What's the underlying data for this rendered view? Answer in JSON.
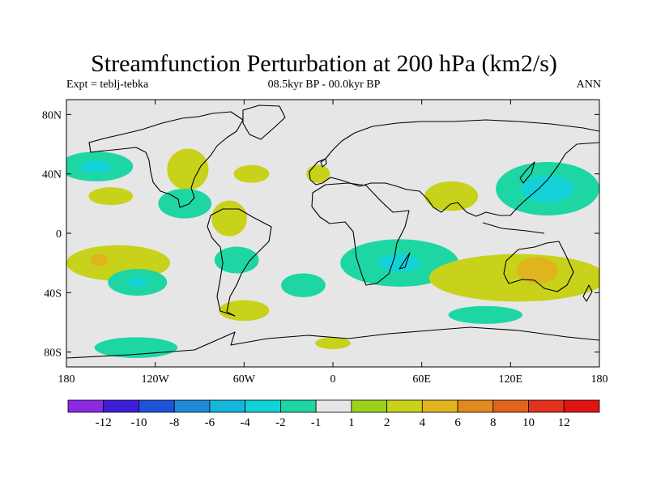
{
  "header": {
    "title": "Streamfunction Perturbation at 200 hPa (km2/s)",
    "left_label": "Expt = teblj-tebka",
    "center_label": "08.5kyr BP - 00.0kyr BP",
    "right_label": "ANN"
  },
  "map": {
    "projection": "cylindrical-equidistant",
    "lon_range": [
      -180,
      180
    ],
    "lat_range": [
      -90,
      90
    ],
    "x_ticks": [
      {
        "lon": -180,
        "label": "180"
      },
      {
        "lon": -120,
        "label": "120W"
      },
      {
        "lon": -60,
        "label": "60W"
      },
      {
        "lon": 0,
        "label": "0"
      },
      {
        "lon": 60,
        "label": "60E"
      },
      {
        "lon": 120,
        "label": "120E"
      },
      {
        "lon": 180,
        "label": "180"
      }
    ],
    "y_ticks": [
      {
        "lat": 80,
        "label": "80N"
      },
      {
        "lat": 40,
        "label": "40N"
      },
      {
        "lat": 0,
        "label": "0"
      },
      {
        "lat": -40,
        "label": "40S"
      },
      {
        "lat": -80,
        "label": "80S"
      }
    ]
  },
  "chart_data": {
    "type": "heatmap",
    "variable": "Streamfunction Perturbation at 200 hPa",
    "units": "km2/s",
    "contour_levels": [
      -12,
      -10,
      -8,
      -6,
      -4,
      -2,
      -1,
      1,
      2,
      4,
      6,
      8,
      10,
      12
    ],
    "colorbar_colors": [
      "#8A2BE2",
      "#3F1FD6",
      "#1E52D8",
      "#1E8AD6",
      "#16B6DC",
      "#12D2D8",
      "#1ED6A4",
      "#E6E6E6",
      "#9CD21E",
      "#C8D21A",
      "#E0B41E",
      "#E08A1E",
      "#E0641E",
      "#E0321E",
      "#E01414"
    ],
    "colorbar_labels": [
      "-12",
      "-10",
      "-8",
      "-6",
      "-4",
      "-2",
      "-1",
      "1",
      "2",
      "4",
      "6",
      "8",
      "10",
      "12"
    ],
    "anomaly_regions": [
      {
        "center_lon": -160,
        "center_lat": 45,
        "half_lon": 25,
        "half_lat": 10,
        "value": -2
      },
      {
        "center_lon": -160,
        "center_lat": 45,
        "half_lon": 10,
        "half_lat": 4,
        "value": -4
      },
      {
        "center_lon": -150,
        "center_lat": 25,
        "half_lon": 15,
        "half_lat": 6,
        "value": 2
      },
      {
        "center_lon": -98,
        "center_lat": 43,
        "half_lon": 14,
        "half_lat": 14,
        "value": 2
      },
      {
        "center_lon": -55,
        "center_lat": 40,
        "half_lon": 12,
        "half_lat": 6,
        "value": 2
      },
      {
        "center_lon": -100,
        "center_lat": 20,
        "half_lon": 18,
        "half_lat": 10,
        "value": -2
      },
      {
        "center_lon": -70,
        "center_lat": 10,
        "half_lon": 12,
        "half_lat": 12,
        "value": 2
      },
      {
        "center_lon": -10,
        "center_lat": 40,
        "half_lon": 8,
        "half_lat": 6,
        "value": 2
      },
      {
        "center_lon": 80,
        "center_lat": 25,
        "half_lon": 18,
        "half_lat": 10,
        "value": 2
      },
      {
        "center_lon": 145,
        "center_lat": 30,
        "half_lon": 35,
        "half_lat": 18,
        "value": -2
      },
      {
        "center_lon": 145,
        "center_lat": 30,
        "half_lon": 18,
        "half_lat": 9,
        "value": -4
      },
      {
        "center_lon": -145,
        "center_lat": -20,
        "half_lon": 35,
        "half_lat": 12,
        "value": 2
      },
      {
        "center_lon": -158,
        "center_lat": -18,
        "half_lon": 6,
        "half_lat": 4,
        "value": 4
      },
      {
        "center_lon": -132,
        "center_lat": -33,
        "half_lon": 20,
        "half_lat": 9,
        "value": -2
      },
      {
        "center_lon": -132,
        "center_lat": -33,
        "half_lon": 7,
        "half_lat": 3,
        "value": -4
      },
      {
        "center_lon": -65,
        "center_lat": -18,
        "half_lon": 15,
        "half_lat": 9,
        "value": -2
      },
      {
        "center_lon": -20,
        "center_lat": -35,
        "half_lon": 15,
        "half_lat": 8,
        "value": -2
      },
      {
        "center_lon": -60,
        "center_lat": -52,
        "half_lon": 17,
        "half_lat": 7,
        "value": 2
      },
      {
        "center_lon": 45,
        "center_lat": -20,
        "half_lon": 40,
        "half_lat": 16,
        "value": -2
      },
      {
        "center_lon": 45,
        "center_lat": -20,
        "half_lon": 14,
        "half_lat": 6,
        "value": -4
      },
      {
        "center_lon": 125,
        "center_lat": -30,
        "half_lon": 60,
        "half_lat": 16,
        "value": 2
      },
      {
        "center_lon": 138,
        "center_lat": -25,
        "half_lon": 14,
        "half_lat": 9,
        "value": 4
      },
      {
        "center_lon": 103,
        "center_lat": -55,
        "half_lon": 25,
        "half_lat": 6,
        "value": -2
      },
      {
        "center_lon": -133,
        "center_lat": -77,
        "half_lon": 28,
        "half_lat": 7,
        "value": -2
      },
      {
        "center_lon": 0,
        "center_lat": -74,
        "half_lon": 12,
        "half_lat": 4,
        "value": 2
      }
    ]
  }
}
